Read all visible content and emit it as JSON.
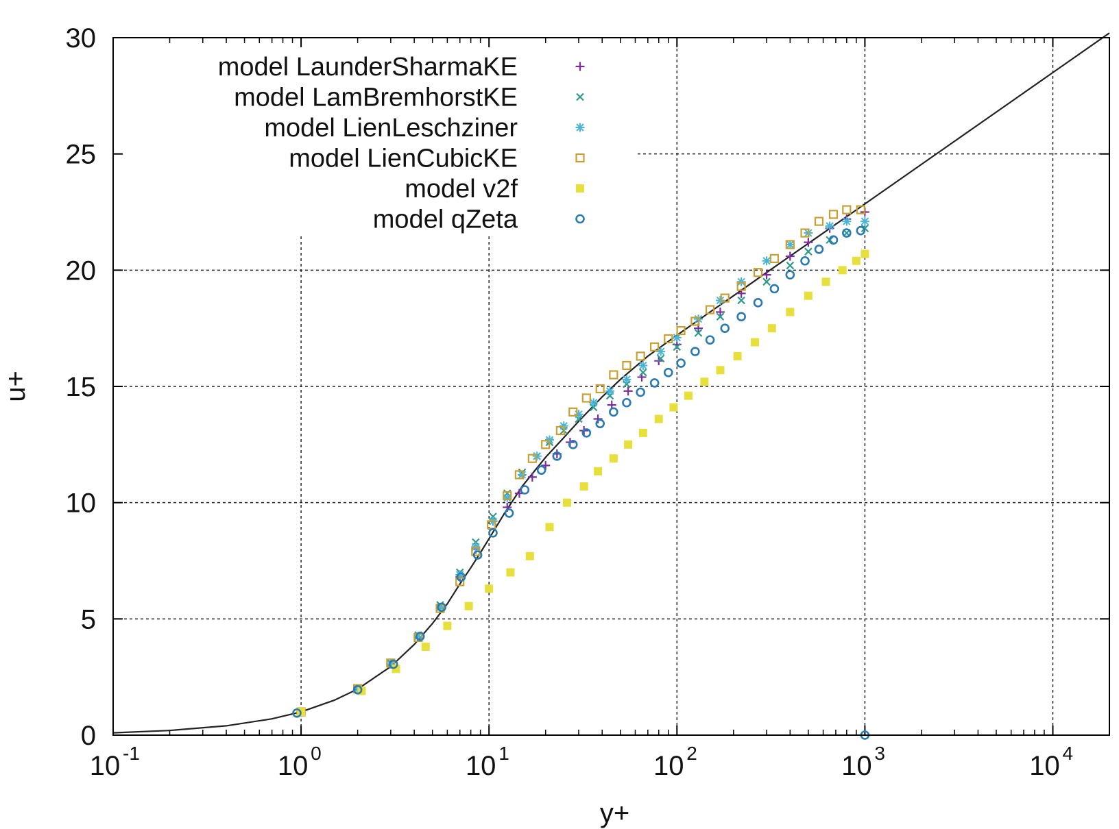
{
  "chart_data": {
    "type": "scatter",
    "title": "",
    "xlabel": "y+",
    "ylabel": "u+",
    "xscale": "log",
    "xlim": [
      0.1,
      20000
    ],
    "ylim": [
      0,
      30
    ],
    "grid": true,
    "legend_position": "top-left",
    "x_ticks": [
      {
        "base": "10",
        "exp": "-1"
      },
      {
        "base": "10",
        "exp": "0"
      },
      {
        "base": "10",
        "exp": "1"
      },
      {
        "base": "10",
        "exp": "2"
      },
      {
        "base": "10",
        "exp": "3"
      },
      {
        "base": "10",
        "exp": "4"
      }
    ],
    "y_ticks": [
      "0",
      "5",
      "10",
      "15",
      "20",
      "25",
      "30"
    ],
    "reference_curve": {
      "color": "#222222",
      "x": [
        0.1,
        0.2,
        0.4,
        0.7,
        1,
        1.5,
        2,
        3,
        4,
        5,
        6,
        7,
        8,
        9,
        10,
        12,
        15,
        20,
        25,
        30,
        40,
        50,
        70,
        100,
        150,
        200,
        300,
        500,
        1000,
        2000,
        5000,
        10000,
        20000
      ],
      "y": [
        0.1,
        0.2,
        0.4,
        0.7,
        1.0,
        1.5,
        1.98,
        2.95,
        3.9,
        4.8,
        5.65,
        6.5,
        7.2,
        7.85,
        8.45,
        9.5,
        10.7,
        11.95,
        12.8,
        13.5,
        14.55,
        15.3,
        16.3,
        17.2,
        18.2,
        18.9,
        19.9,
        21.15,
        22.85,
        24.55,
        26.8,
        28.5,
        30.2
      ]
    },
    "series": [
      {
        "name": "model LaunderSharmaKE",
        "marker": "plus",
        "color": "#7b2d9e",
        "x": [
          1,
          2,
          3,
          4.2,
          5.5,
          7,
          8.5,
          10.5,
          12.5,
          14.5,
          17,
          20,
          23,
          27,
          32,
          38,
          45,
          55,
          65,
          80,
          100,
          130,
          170,
          220,
          300,
          400,
          500,
          650,
          800,
          1000
        ],
        "y": [
          1.0,
          2.0,
          3.05,
          4.2,
          5.5,
          6.8,
          8.0,
          9.2,
          9.8,
          10.4,
          11.1,
          11.6,
          12.1,
          12.6,
          13.1,
          13.6,
          14.2,
          14.8,
          15.4,
          16.1,
          16.8,
          17.5,
          18.2,
          19.0,
          19.8,
          20.6,
          21.2,
          21.8,
          22.2,
          22.5
        ]
      },
      {
        "name": "model LamBremhorstKE",
        "marker": "cross",
        "color": "#2e9a8a",
        "x": [
          1,
          2,
          3,
          4.2,
          5.5,
          7,
          8.5,
          10.5,
          12.5,
          15,
          18,
          21,
          25,
          30,
          36,
          44,
          54,
          66,
          82,
          100,
          130,
          170,
          220,
          300,
          400,
          500,
          650,
          800,
          1000
        ],
        "y": [
          1.0,
          2.0,
          3.1,
          4.3,
          5.6,
          7.0,
          8.3,
          9.4,
          10.4,
          11.3,
          12.0,
          12.6,
          13.1,
          13.6,
          14.1,
          14.6,
          15.1,
          15.6,
          16.2,
          16.7,
          17.3,
          18.0,
          18.7,
          19.5,
          20.2,
          20.8,
          21.3,
          21.6,
          21.8
        ]
      },
      {
        "name": "model LienLeschziner",
        "marker": "star",
        "color": "#4ab4d8",
        "x": [
          1,
          2,
          3,
          4.2,
          5.5,
          7,
          8.5,
          10.5,
          12.5,
          15,
          18,
          21,
          25,
          30,
          36,
          44,
          54,
          66,
          82,
          100,
          130,
          170,
          220,
          300,
          400,
          500,
          650,
          800,
          1000
        ],
        "y": [
          1.0,
          2.0,
          3.05,
          4.25,
          5.5,
          6.9,
          8.1,
          9.2,
          10.2,
          11.2,
          12.0,
          12.7,
          13.3,
          13.8,
          14.3,
          14.8,
          15.3,
          15.9,
          16.5,
          17.1,
          17.9,
          18.7,
          19.5,
          20.4,
          21.1,
          21.6,
          21.9,
          22.1,
          22.1
        ]
      },
      {
        "name": "model LienCubicKE",
        "marker": "square-open",
        "color": "#c8a032",
        "x": [
          1,
          2,
          3,
          4.2,
          5.5,
          7,
          8.5,
          10.3,
          12.5,
          14.5,
          17,
          20,
          24,
          28,
          33,
          39,
          46,
          54,
          64,
          76,
          90,
          105,
          125,
          150,
          180,
          220,
          270,
          330,
          400,
          480,
          570,
          680,
          800,
          950
        ],
        "y": [
          1.0,
          2.0,
          3.1,
          4.2,
          5.45,
          6.6,
          7.9,
          9.05,
          10.3,
          11.2,
          11.9,
          12.5,
          13.1,
          13.9,
          14.5,
          14.9,
          15.5,
          15.9,
          16.3,
          16.7,
          17.05,
          17.4,
          17.8,
          18.3,
          18.8,
          19.3,
          19.9,
          20.5,
          21.1,
          21.6,
          22.1,
          22.4,
          22.6,
          22.6
        ]
      },
      {
        "name": "model v2f",
        "marker": "square-filled",
        "color": "#e6df3c",
        "x": [
          1,
          2.1,
          3.2,
          4.6,
          6,
          7.8,
          10,
          13,
          16.5,
          21,
          26,
          32,
          38,
          46,
          55,
          66,
          80,
          96,
          115,
          140,
          170,
          210,
          260,
          320,
          400,
          500,
          620,
          760,
          900,
          1000
        ],
        "y": [
          1.0,
          1.9,
          2.85,
          3.8,
          4.7,
          5.55,
          6.3,
          7.0,
          7.7,
          8.95,
          10.0,
          10.7,
          11.35,
          11.9,
          12.5,
          13.0,
          13.6,
          14.1,
          14.6,
          15.2,
          15.7,
          16.3,
          16.9,
          17.5,
          18.2,
          18.9,
          19.5,
          20.0,
          20.4,
          20.7
        ]
      },
      {
        "name": "model qZeta",
        "marker": "circle-open",
        "color": "#2a7ab0",
        "x": [
          0.95,
          2,
          3.1,
          4.3,
          5.6,
          7.1,
          8.7,
          10.5,
          12.8,
          15.5,
          19,
          23,
          28,
          33,
          39,
          46,
          54,
          64,
          76,
          90,
          105,
          125,
          150,
          180,
          220,
          270,
          330,
          400,
          480,
          570,
          680,
          800,
          950,
          1000
        ],
        "y": [
          0.95,
          1.95,
          3.05,
          4.25,
          5.5,
          6.8,
          7.75,
          8.7,
          9.55,
          10.55,
          11.4,
          12.0,
          12.5,
          13.0,
          13.4,
          13.9,
          14.3,
          14.75,
          15.15,
          15.6,
          16.0,
          16.5,
          17.0,
          17.5,
          18.0,
          18.6,
          19.2,
          19.8,
          20.4,
          20.9,
          21.3,
          21.6,
          21.7,
          0.0
        ]
      }
    ]
  }
}
